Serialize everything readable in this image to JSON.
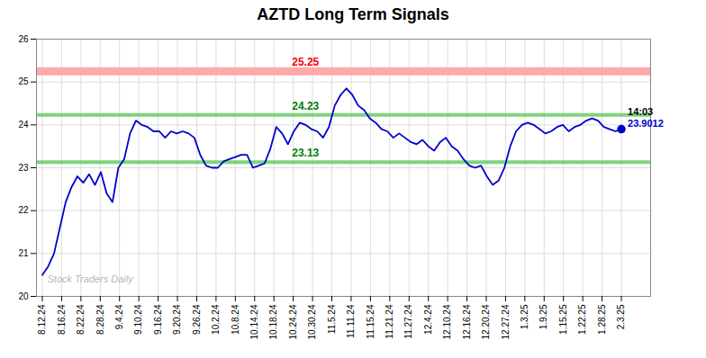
{
  "chart_data": {
    "type": "line",
    "title": "AZTD Long Term Signals",
    "color": "#0000cc",
    "x": [
      0,
      1,
      2,
      3,
      4,
      5,
      6,
      7,
      8,
      9,
      10,
      11,
      12,
      13,
      14,
      15,
      16,
      17,
      18,
      19,
      20,
      21,
      22,
      23,
      24,
      25,
      26,
      27,
      28,
      29,
      30,
      31,
      32,
      33,
      34,
      35,
      36,
      37,
      38,
      39,
      40,
      41,
      42,
      43,
      44,
      45,
      46,
      47,
      48,
      49,
      50,
      51,
      52,
      53,
      54,
      55,
      56,
      57,
      58,
      59,
      60,
      61,
      62,
      63,
      64,
      65,
      66,
      67,
      68,
      69,
      70,
      71,
      72,
      73,
      74,
      75,
      76,
      77,
      78,
      79,
      80,
      81,
      82,
      83,
      84,
      85,
      86,
      87,
      88,
      89,
      90,
      91,
      92,
      93,
      94,
      95,
      96,
      97,
      98,
      99
    ],
    "values": [
      20.5,
      20.7,
      21.0,
      21.6,
      22.2,
      22.55,
      22.8,
      22.65,
      22.85,
      22.6,
      22.9,
      22.4,
      22.2,
      23.0,
      23.2,
      23.8,
      24.1,
      24.0,
      23.95,
      23.85,
      23.85,
      23.7,
      23.85,
      23.8,
      23.85,
      23.8,
      23.7,
      23.3,
      23.05,
      23.0,
      23.0,
      23.15,
      23.2,
      23.25,
      23.3,
      23.3,
      23.0,
      23.05,
      23.1,
      23.45,
      23.95,
      23.8,
      23.55,
      23.85,
      24.05,
      24.0,
      23.9,
      23.85,
      23.7,
      23.95,
      24.45,
      24.7,
      24.85,
      24.7,
      24.45,
      24.35,
      24.15,
      24.05,
      23.9,
      23.85,
      23.7,
      23.8,
      23.7,
      23.6,
      23.55,
      23.65,
      23.5,
      23.4,
      23.6,
      23.7,
      23.5,
      23.4,
      23.2,
      23.05,
      23.0,
      23.05,
      22.8,
      22.6,
      22.7,
      23.0,
      23.5,
      23.85,
      24.0,
      24.05,
      24.0,
      23.9,
      23.8,
      23.85,
      23.95,
      24.0,
      23.85,
      23.95,
      24.0,
      24.1,
      24.15,
      24.1,
      23.95,
      23.9,
      23.85,
      23.9012
    ],
    "xlim": [
      -1,
      104
    ],
    "xticks": [
      {
        "value": 0,
        "label": "8.12.24"
      },
      {
        "value": 3.3,
        "label": "8.16.24"
      },
      {
        "value": 6.6,
        "label": "8.22.24"
      },
      {
        "value": 9.9,
        "label": "8.28.24"
      },
      {
        "value": 13.2,
        "label": "9.4.24"
      },
      {
        "value": 16.5,
        "label": "9.10.24"
      },
      {
        "value": 19.8,
        "label": "9.16.24"
      },
      {
        "value": 23.1,
        "label": "9.20.24"
      },
      {
        "value": 26.4,
        "label": "9.26.24"
      },
      {
        "value": 29.7,
        "label": "10.2.24"
      },
      {
        "value": 33,
        "label": "10.8.24"
      },
      {
        "value": 36.3,
        "label": "10.14.24"
      },
      {
        "value": 39.6,
        "label": "10.18.24"
      },
      {
        "value": 42.9,
        "label": "10.24.24"
      },
      {
        "value": 46.2,
        "label": "10.30.24"
      },
      {
        "value": 49.5,
        "label": "11.5.24"
      },
      {
        "value": 52.8,
        "label": "11.11.24"
      },
      {
        "value": 56.1,
        "label": "11.15.24"
      },
      {
        "value": 59.4,
        "label": "11.21.24"
      },
      {
        "value": 62.7,
        "label": "11.27.24"
      },
      {
        "value": 66,
        "label": "12.4.24"
      },
      {
        "value": 69.3,
        "label": "12.10.24"
      },
      {
        "value": 72.6,
        "label": "12.16.24"
      },
      {
        "value": 75.9,
        "label": "12.20.24"
      },
      {
        "value": 79.2,
        "label": "12.27.24"
      },
      {
        "value": 82.5,
        "label": "1.3.25"
      },
      {
        "value": 85.8,
        "label": "1.9.25"
      },
      {
        "value": 89.1,
        "label": "1.15.25"
      },
      {
        "value": 92.4,
        "label": "1.22.25"
      },
      {
        "value": 95.7,
        "label": "1.28.25"
      },
      {
        "value": 99,
        "label": "2.3.25"
      }
    ],
    "ylim": [
      20,
      26
    ],
    "yticks": [
      20,
      21,
      22,
      23,
      24,
      25,
      26
    ],
    "grid": true,
    "bands": [
      {
        "y": 25.25,
        "label": "25.25",
        "color": "#ffaaaa",
        "label_color": "red"
      },
      {
        "y": 24.23,
        "label": "24.23",
        "color": "#66cc66",
        "label_color": "green"
      },
      {
        "y": 23.13,
        "label": "23.13",
        "color": "#66cc66",
        "label_color": "green"
      }
    ],
    "last_point": {
      "x": 99,
      "y": 23.9012,
      "marker": "circle",
      "time_label": "14:03",
      "value_label": "23.9012",
      "time_label_color": "black"
    },
    "watermark": "Stock Traders Daily"
  }
}
